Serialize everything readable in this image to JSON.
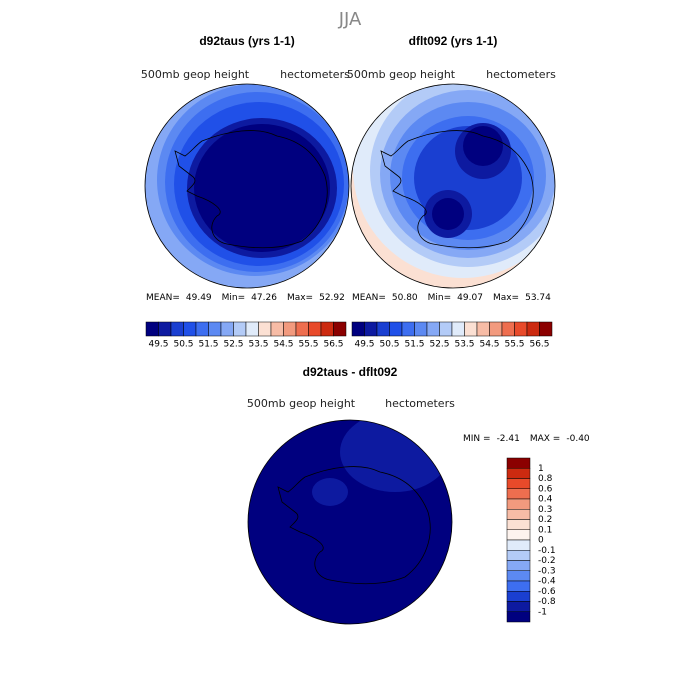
{
  "title": "JJA",
  "panels": [
    {
      "title": "d92taus (yrs 1-1)",
      "field": "500mb geop height",
      "units": "hectometers",
      "stats": [
        {
          "label": "MEAN=",
          "value": "49.49"
        },
        {
          "label": "Min=",
          "value": "47.26"
        },
        {
          "label": "Max=",
          "value": "52.92"
        }
      ]
    },
    {
      "title": "dflt092 (yrs 1-1)",
      "field": "500mb geop height",
      "units": "hectometers",
      "stats": [
        {
          "label": "MEAN=",
          "value": "50.80"
        },
        {
          "label": "Min=",
          "value": "49.07"
        },
        {
          "label": "Max=",
          "value": "53.74"
        }
      ]
    }
  ],
  "colorbar": {
    "colors": [
      "#00007f",
      "#0d1aa0",
      "#1a3fd1",
      "#2050e8",
      "#3d6ef0",
      "#5c89f2",
      "#85a8f5",
      "#b3cbf7",
      "#e0ebfa",
      "#fbe0d3",
      "#f7bca6",
      "#f29a7e",
      "#ee6e4f",
      "#e84a2a",
      "#cc2a10",
      "#8b0000"
    ],
    "labels": [
      49.5,
      50.5,
      51.5,
      52.5,
      53.5,
      54.5,
      55.5,
      56.5
    ]
  },
  "difference": {
    "title": "d92taus - dflt092",
    "field": "500mb geop height",
    "units": "hectometers",
    "stats": [
      {
        "label": "MIN =",
        "value": "-2.41"
      },
      {
        "label": "MAX =",
        "value": "-0.40"
      }
    ],
    "colorbar": {
      "colors": [
        "#8b0000",
        "#cc2a10",
        "#e84a2a",
        "#ee6e4f",
        "#f29a7e",
        "#f7bca6",
        "#fbe0d3",
        "#fdf3ee",
        "#e0ebfa",
        "#b3cbf7",
        "#85a8f5",
        "#5c89f2",
        "#3d6ef0",
        "#1a3fd1",
        "#0d1aa0",
        "#00007f"
      ],
      "labels": [
        1,
        0.8,
        0.6,
        0.4,
        0.3,
        0.2,
        0.1,
        0,
        -0.1,
        -0.2,
        -0.3,
        -0.4,
        -0.6,
        -0.8,
        -1
      ]
    }
  }
}
